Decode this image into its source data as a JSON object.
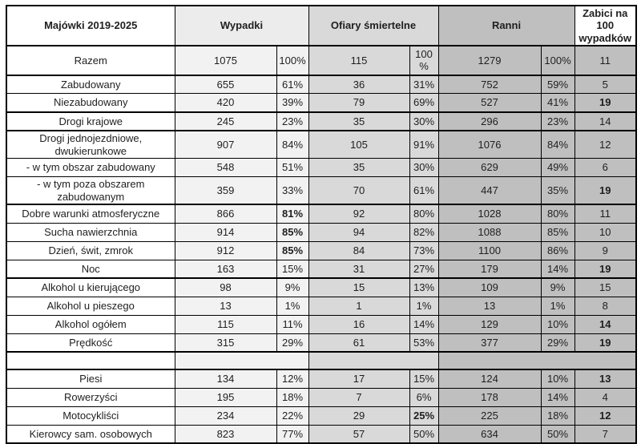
{
  "colors": {
    "grid": "#000000",
    "text": "#1f1f1f",
    "wypadki_bg": "#f2f2f2",
    "wypadki_header_bg": "#ececec",
    "ofiary_bg": "#d9d9d9",
    "ranni_bg": "#bfbfbf",
    "zabici_bg": "#bfbfbf"
  },
  "header": {
    "label": "Majówki 2019-2025",
    "wypadki": "Wypadki",
    "ofiary": "Ofiary śmiertelne",
    "ranni": "Ranni",
    "zabici": "Zabici na 100 wypadków"
  },
  "rows": [
    {
      "label": "Razem",
      "wypadki": "1075",
      "wypadki_pct": "100%",
      "ofiary": "115",
      "ofiary_pct": "100 %",
      "ranni": "1279",
      "ranni_pct": "100%",
      "zabici": "11",
      "bold": [],
      "thick_bottom": true,
      "tall": true
    },
    {
      "label": "Zabudowany",
      "wypadki": "655",
      "wypadki_pct": "61%",
      "ofiary": "36",
      "ofiary_pct": "31%",
      "ranni": "752",
      "ranni_pct": "59%",
      "zabici": "5",
      "bold": [],
      "thick_bottom": false
    },
    {
      "label": "Niezabudowany",
      "wypadki": "420",
      "wypadki_pct": "39%",
      "ofiary": "79",
      "ofiary_pct": "69%",
      "ranni": "527",
      "ranni_pct": "41%",
      "zabici": "19",
      "bold": [
        "zabici"
      ],
      "thick_bottom": true
    },
    {
      "label": "Drogi krajowe",
      "wypadki": "245",
      "wypadki_pct": "23%",
      "ofiary": "35",
      "ofiary_pct": "30%",
      "ranni": "296",
      "ranni_pct": "23%",
      "zabici": "14",
      "bold": [],
      "thick_bottom": true
    },
    {
      "label": "Drogi jednojezdniowe, dwukierunkowe",
      "wypadki": "907",
      "wypadki_pct": "84%",
      "ofiary": "105",
      "ofiary_pct": "91%",
      "ranni": "1076",
      "ranni_pct": "84%",
      "zabici": "12",
      "bold": [],
      "thick_bottom": false
    },
    {
      "label": "- w tym obszar zabudowany",
      "wypadki": "548",
      "wypadki_pct": "51%",
      "ofiary": "35",
      "ofiary_pct": "30%",
      "ranni": "629",
      "ranni_pct": "49%",
      "zabici": "6",
      "bold": [],
      "thick_bottom": false
    },
    {
      "label": "- w tym poza obszarem zabudowanym",
      "wypadki": "359",
      "wypadki_pct": "33%",
      "ofiary": "70",
      "ofiary_pct": "61%",
      "ranni": "447",
      "ranni_pct": "35%",
      "zabici": "19",
      "bold": [
        "zabici"
      ],
      "thick_bottom": true
    },
    {
      "label": "Dobre warunki atmosferyczne",
      "wypadki": "866",
      "wypadki_pct": "81%",
      "ofiary": "92",
      "ofiary_pct": "80%",
      "ranni": "1028",
      "ranni_pct": "80%",
      "zabici": "11",
      "bold": [
        "wypadki_pct"
      ],
      "thick_bottom": false
    },
    {
      "label": "Sucha nawierzchnia",
      "wypadki": "914",
      "wypadki_pct": "85%",
      "ofiary": "94",
      "ofiary_pct": "82%",
      "ranni": "1088",
      "ranni_pct": "85%",
      "zabici": "10",
      "bold": [
        "wypadki_pct"
      ],
      "thick_bottom": false
    },
    {
      "label": "Dzień, świt, zmrok",
      "wypadki": "912",
      "wypadki_pct": "85%",
      "ofiary": "84",
      "ofiary_pct": "73%",
      "ranni": "1100",
      "ranni_pct": "86%",
      "zabici": "9",
      "bold": [
        "wypadki_pct"
      ],
      "thick_bottom": false
    },
    {
      "label": "Noc",
      "wypadki": "163",
      "wypadki_pct": "15%",
      "ofiary": "31",
      "ofiary_pct": "27%",
      "ranni": "179",
      "ranni_pct": "14%",
      "zabici": "19",
      "bold": [
        "zabici"
      ],
      "thick_bottom": true
    },
    {
      "label": "Alkohol u kierującego",
      "wypadki": "98",
      "wypadki_pct": "9%",
      "ofiary": "15",
      "ofiary_pct": "13%",
      "ranni": "109",
      "ranni_pct": "9%",
      "zabici": "15",
      "bold": [],
      "thick_bottom": false
    },
    {
      "label": "Alkohol u pieszego",
      "wypadki": "13",
      "wypadki_pct": "1%",
      "ofiary": "1",
      "ofiary_pct": "1%",
      "ranni": "13",
      "ranni_pct": "1%",
      "zabici": "8",
      "bold": [],
      "thick_bottom": false
    },
    {
      "label": "Alkohol ogółem",
      "wypadki": "115",
      "wypadki_pct": "11%",
      "ofiary": "16",
      "ofiary_pct": "14%",
      "ranni": "129",
      "ranni_pct": "10%",
      "zabici": "14",
      "bold": [
        "zabici"
      ],
      "thick_bottom": false
    },
    {
      "label": "Prędkość",
      "wypadki": "315",
      "wypadki_pct": "29%",
      "ofiary": "61",
      "ofiary_pct": "53%",
      "ranni": "377",
      "ranni_pct": "29%",
      "zabici": "19",
      "bold": [
        "zabici"
      ],
      "thick_bottom": true
    },
    {
      "empty": true,
      "thick_bottom": true
    },
    {
      "label": "Piesi",
      "wypadki": "134",
      "wypadki_pct": "12%",
      "ofiary": "17",
      "ofiary_pct": "15%",
      "ranni": "124",
      "ranni_pct": "10%",
      "zabici": "13",
      "bold": [
        "zabici"
      ],
      "thick_bottom": false
    },
    {
      "label": "Rowerzyści",
      "wypadki": "195",
      "wypadki_pct": "18%",
      "ofiary": "7",
      "ofiary_pct": "6%",
      "ranni": "178",
      "ranni_pct": "14%",
      "zabici": "4",
      "bold": [],
      "thick_bottom": false
    },
    {
      "label": "Motocykliści",
      "wypadki": "234",
      "wypadki_pct": "22%",
      "ofiary": "29",
      "ofiary_pct": "25%",
      "ranni": "225",
      "ranni_pct": "18%",
      "zabici": "12",
      "bold": [
        "ofiary_pct",
        "zabici"
      ],
      "thick_bottom": false
    },
    {
      "label": "Kierowcy sam. osobowych",
      "wypadki": "823",
      "wypadki_pct": "77%",
      "ofiary": "57",
      "ofiary_pct": "50%",
      "ranni": "634",
      "ranni_pct": "50%",
      "zabici": "7",
      "bold": [],
      "thick_bottom": false
    }
  ]
}
